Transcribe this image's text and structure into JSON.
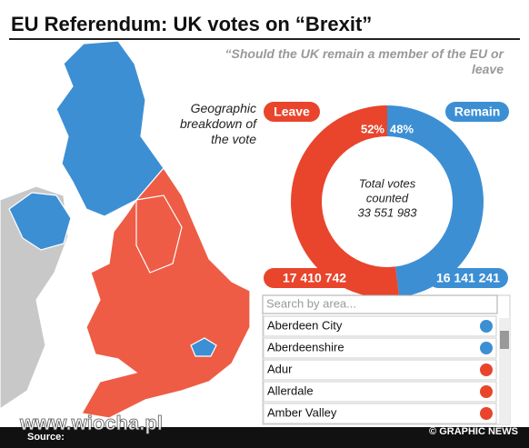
{
  "header": {
    "title": "EU Referendum: UK votes on “Brexit”",
    "subtitle": "“Should the UK remain a member of the EU or leave the EU?”",
    "caption": "Geographic breakdown of the vote"
  },
  "chart_data": {
    "type": "pie",
    "donut": true,
    "categories": [
      "Leave",
      "Remain"
    ],
    "values": [
      52,
      48
    ],
    "value_labels": [
      "52%",
      "48%"
    ],
    "colors": [
      "#e8452c",
      "#3d8fd4"
    ],
    "counts": [
      "17 410 742",
      "16 141 241"
    ],
    "center_text": [
      "Total votes",
      "counted",
      "33 551 983"
    ]
  },
  "search": {
    "placeholder": "Search by area...",
    "rows": [
      {
        "name": "Aberdeen City",
        "color": "#3d8fd4"
      },
      {
        "name": "Aberdeenshire",
        "color": "#3d8fd4"
      },
      {
        "name": "Adur",
        "color": "#e8452c"
      },
      {
        "name": "Allerdale",
        "color": "#e8452c"
      },
      {
        "name": "Amber Valley",
        "color": "#e8452c"
      }
    ]
  },
  "footer": {
    "source": "Source:",
    "credit": "© GRAPHIC NEWS",
    "watermark": "www.wiocha.pl"
  }
}
